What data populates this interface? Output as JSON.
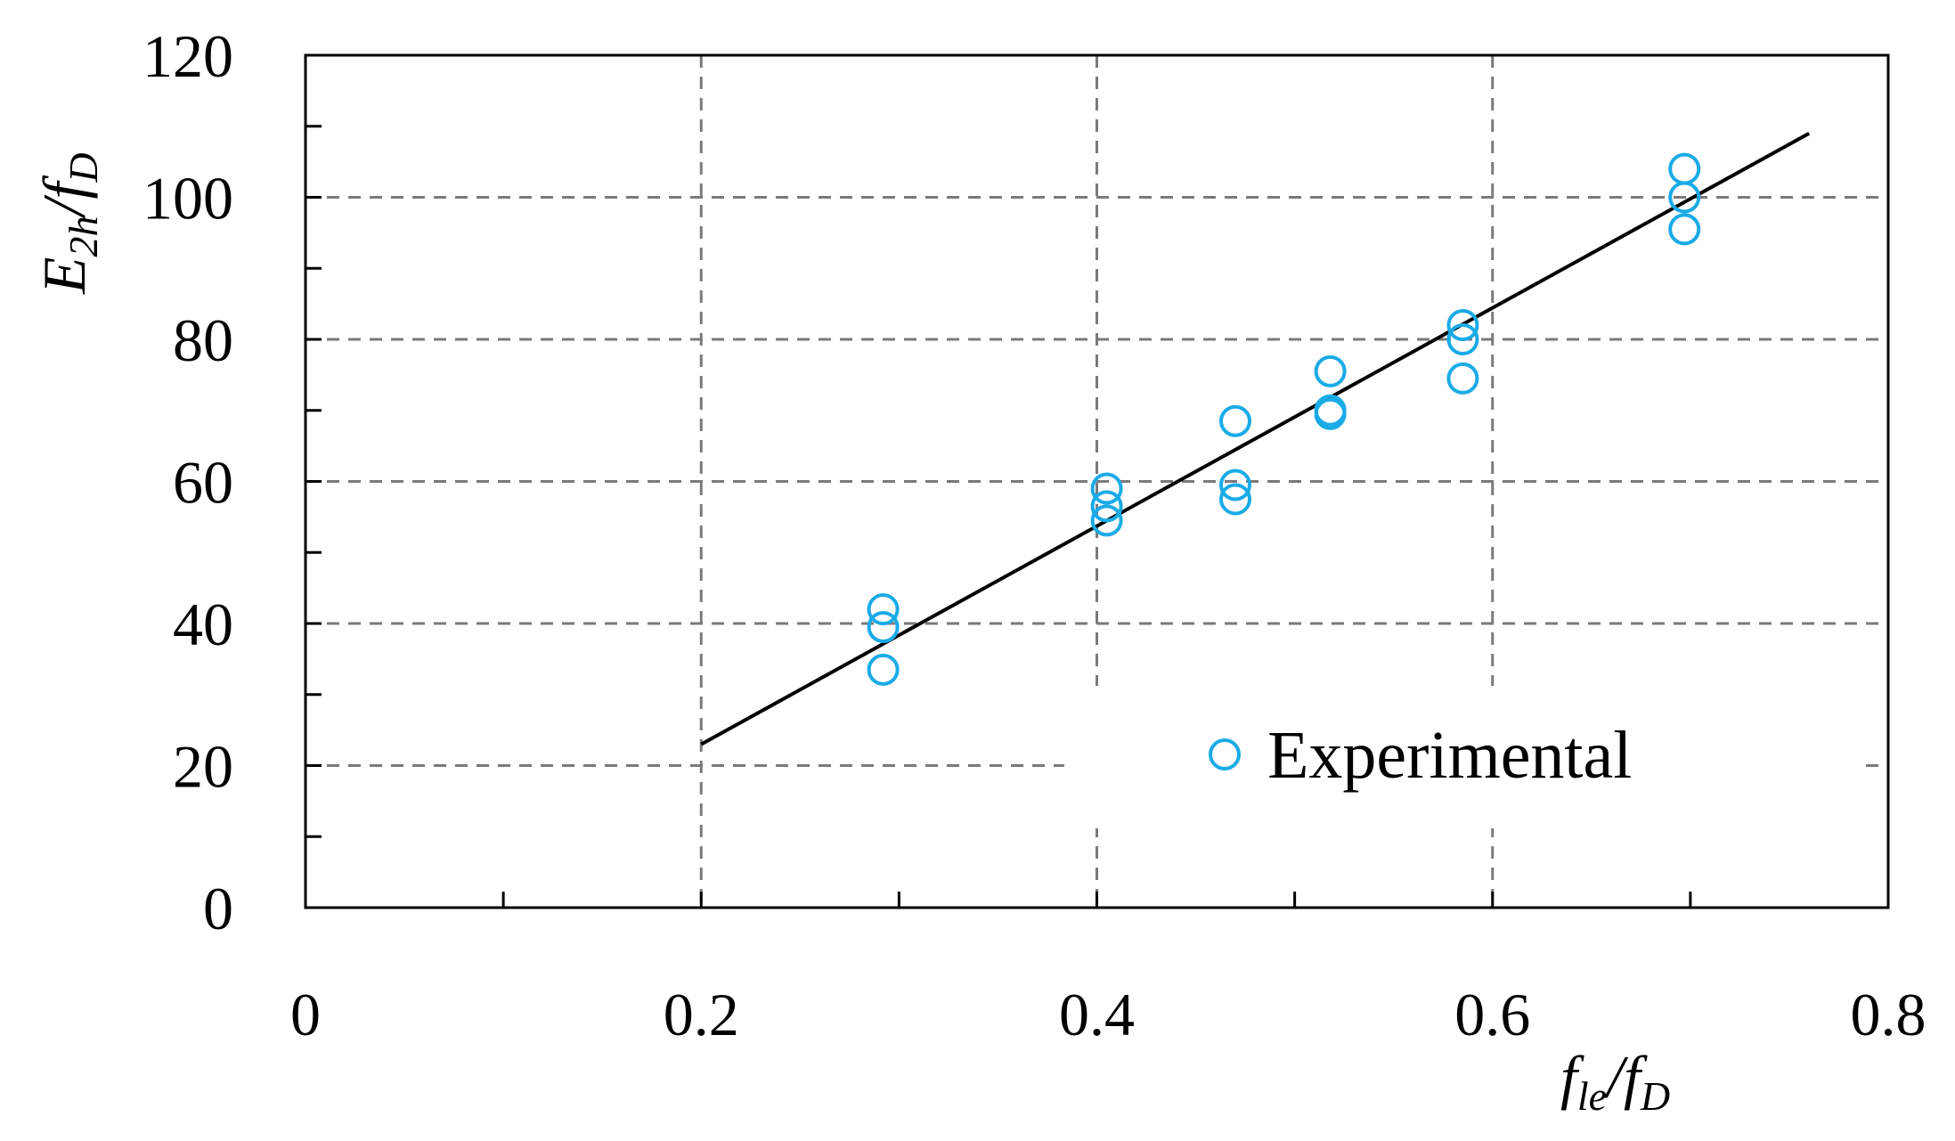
{
  "chart_data": {
    "type": "scatter",
    "x_axis": {
      "label_main": "f",
      "label_sub": "le",
      "label_sep": "/",
      "label_main2": "f",
      "label_sub2": "D",
      "range": [
        0,
        0.8
      ],
      "ticks": [
        "0",
        "0.2",
        "0.4",
        "0.6",
        "0.8"
      ],
      "tick_values": [
        0,
        0.2,
        0.4,
        0.6,
        0.8
      ],
      "minor_tick_values": [
        0.1,
        0.3,
        0.5,
        0.7
      ]
    },
    "y_axis": {
      "label_main": "E",
      "label_sub": "2h",
      "label_sep": "/",
      "label_main2": "f",
      "label_sub2": "D",
      "range": [
        0,
        120
      ],
      "ticks": [
        "0",
        "20",
        "40",
        "60",
        "80",
        "100",
        "120"
      ],
      "tick_values": [
        0,
        20,
        40,
        60,
        80,
        100,
        120
      ],
      "minor_tick_values": [
        10,
        30,
        50,
        70,
        90,
        110
      ]
    },
    "grid": true,
    "legend": {
      "placement": "bottom-right",
      "entries": [
        "Experimental"
      ]
    },
    "series": [
      {
        "name": "Experimental",
        "marker": "open-circle",
        "color": "#1aabe6",
        "points": [
          [
            0.292,
            42
          ],
          [
            0.292,
            39.5
          ],
          [
            0.292,
            33.5
          ],
          [
            0.405,
            59
          ],
          [
            0.405,
            56.5
          ],
          [
            0.405,
            54.5
          ],
          [
            0.47,
            68.5
          ],
          [
            0.47,
            59.5
          ],
          [
            0.47,
            57.5
          ],
          [
            0.518,
            75.5
          ],
          [
            0.518,
            70
          ],
          [
            0.518,
            69.5
          ],
          [
            0.585,
            82
          ],
          [
            0.585,
            80
          ],
          [
            0.585,
            74.5
          ],
          [
            0.697,
            104
          ],
          [
            0.697,
            100
          ],
          [
            0.697,
            95.5
          ]
        ]
      },
      {
        "type": "line",
        "color": "#000000",
        "points": [
          [
            0.2,
            23
          ],
          [
            0.76,
            109
          ]
        ]
      }
    ]
  }
}
